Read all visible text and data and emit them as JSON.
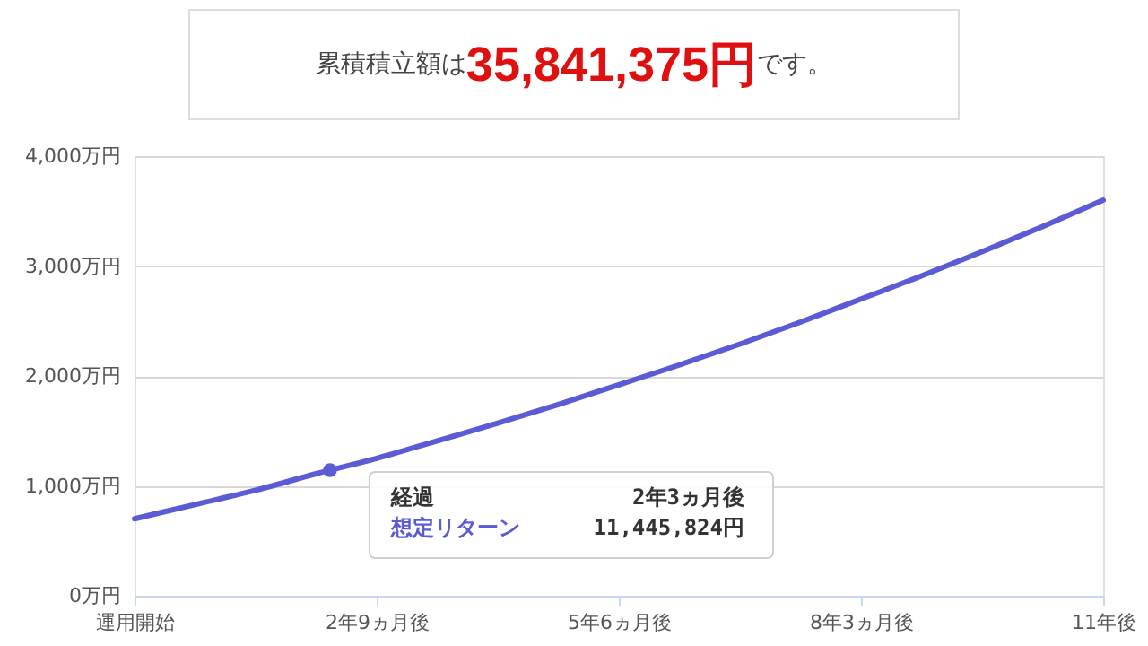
{
  "chart_data": {
    "type": "line",
    "title": "累積積立額は35,841,375円です。",
    "categories": [
      "運用開始",
      null,
      null,
      null,
      "2年9ヵ月後",
      null,
      null,
      null,
      "5年6ヵ月後",
      null,
      null,
      null,
      "8年3ヵ月後",
      null,
      null,
      null,
      "11年後"
    ],
    "series": [
      {
        "color": "#5b5bd6",
        "values": [
          700,
          830,
          960,
          1110,
          1250,
          1410,
          1570,
          1740,
          1920,
          2100,
          2290,
          2490,
          2700,
          2910,
          3130,
          3360,
          3600
        ]
      }
    ],
    "ylim": [
      0,
      4000
    ],
    "yticks": [
      {
        "value": 0,
        "label": "0万円"
      },
      {
        "value": 1000,
        "label": "1,000万円"
      },
      {
        "value": 2000,
        "label": "2,000万円"
      },
      {
        "value": 3000,
        "label": "3,000万円"
      },
      {
        "value": 4000,
        "label": "4,000万円"
      }
    ],
    "grid": "y",
    "marker": "none",
    "line_style": "solid",
    "annotations": [
      "経過",
      "2年3ヵ月後",
      "想定リターン",
      "11,445,824円"
    ]
  }
}
